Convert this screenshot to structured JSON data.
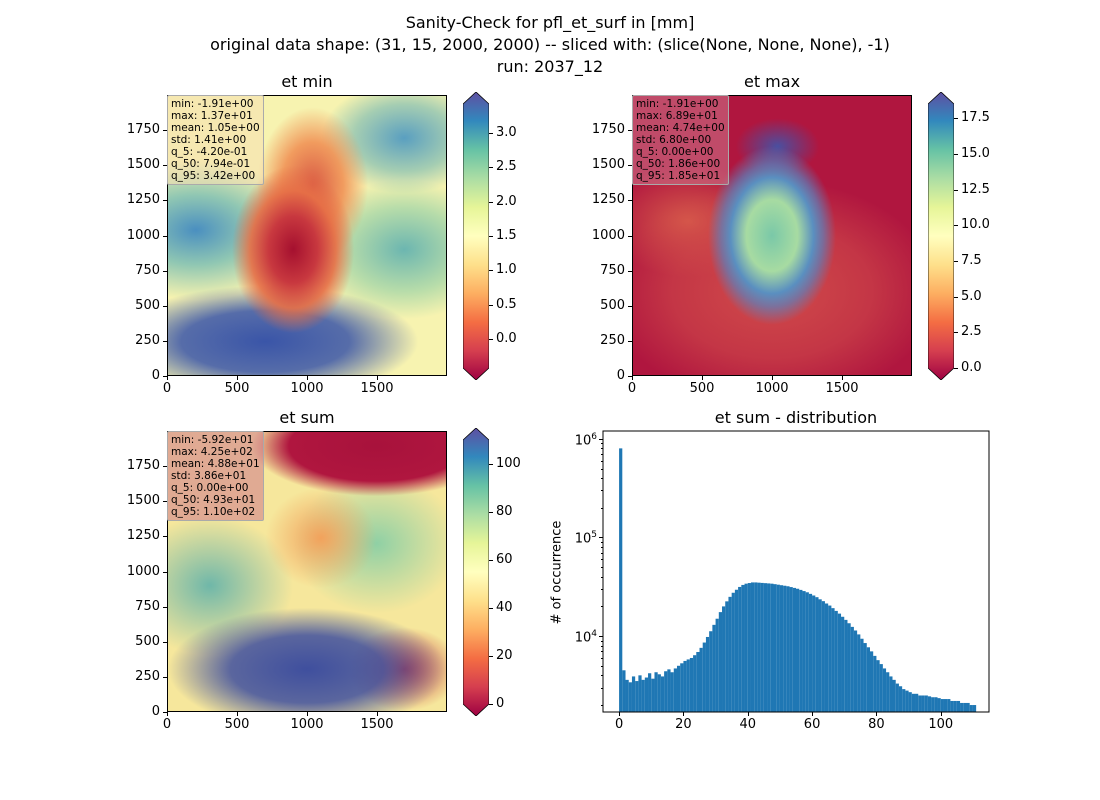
{
  "figure": {
    "title_line1": "Sanity-Check for pfl_et_surf in [mm]",
    "title_line2": "original data shape: (31, 15, 2000, 2000) -- sliced with: (slice(None, None, None), -1)",
    "title_line3": "run: 2037_12"
  },
  "chart_data": [
    {
      "type": "heatmap",
      "title": "et min",
      "xlim": [
        0,
        2000
      ],
      "ylim": [
        0,
        2000
      ],
      "xticks": [
        "0",
        "500",
        "1000",
        "1500"
      ],
      "yticks": [
        "0",
        "250",
        "500",
        "750",
        "1000",
        "1250",
        "1500",
        "1750"
      ],
      "colorbar_ticks": [
        "0.0",
        "0.5",
        "1.0",
        "1.5",
        "2.0",
        "2.5",
        "3.0"
      ],
      "colorbar_range": [
        -0.42,
        3.42
      ],
      "colormap": "Spectral",
      "stats": [
        "min: -1.91e+00",
        "max: 1.37e+01",
        "mean: 1.05e+00",
        "std: 1.41e+00",
        "q_5: -4.20e-01",
        "q_50: 7.94e-01",
        "q_95: 3.42e+00"
      ]
    },
    {
      "type": "heatmap",
      "title": "et max",
      "xlim": [
        0,
        2000
      ],
      "ylim": [
        0,
        2000
      ],
      "xticks": [
        "0",
        "500",
        "1000",
        "1500"
      ],
      "yticks": [
        "0",
        "250",
        "500",
        "750",
        "1000",
        "1250",
        "1500",
        "1750"
      ],
      "colorbar_ticks": [
        "0.0",
        "2.5",
        "5.0",
        "7.5",
        "10.0",
        "12.5",
        "15.0",
        "17.5"
      ],
      "colorbar_range": [
        0,
        18.5
      ],
      "colormap": "Spectral",
      "stats": [
        "min: -1.91e+00",
        "max: 6.89e+01",
        "mean: 4.74e+00",
        "std: 6.80e+00",
        "q_5: 0.00e+00",
        "q_50: 1.86e+00",
        "q_95: 1.85e+01"
      ]
    },
    {
      "type": "heatmap",
      "title": "et sum",
      "xlim": [
        0,
        2000
      ],
      "ylim": [
        0,
        2000
      ],
      "xticks": [
        "0",
        "500",
        "1000",
        "1500"
      ],
      "yticks": [
        "0",
        "250",
        "500",
        "750",
        "1000",
        "1250",
        "1500",
        "1750"
      ],
      "colorbar_ticks": [
        "0",
        "20",
        "40",
        "60",
        "80",
        "100"
      ],
      "colorbar_range": [
        0,
        110
      ],
      "colormap": "Spectral",
      "stats": [
        "min: -5.92e+01",
        "max: 4.25e+02",
        "mean: 4.88e+01",
        "std: 3.86e+01",
        "q_5: 0.00e+00",
        "q_50: 4.93e+01",
        "q_95: 1.10e+02"
      ]
    },
    {
      "type": "bar",
      "title": "et sum - distribution",
      "ylabel": "# of occurrence",
      "yscale": "log",
      "xlim": [
        -5,
        115
      ],
      "ylim": [
        1700,
        1200000
      ],
      "xticks": [
        "0",
        "20",
        "40",
        "60",
        "80",
        "100"
      ],
      "yticks": [
        "10^4",
        "10^5",
        "10^6"
      ],
      "bar_color": "#1f77b4",
      "x": [
        0,
        1,
        2,
        3,
        4,
        5,
        6,
        7,
        8,
        9,
        10,
        11,
        12,
        13,
        14,
        15,
        16,
        17,
        18,
        19,
        20,
        21,
        22,
        23,
        24,
        25,
        26,
        27,
        28,
        29,
        30,
        31,
        32,
        33,
        34,
        35,
        36,
        37,
        38,
        39,
        40,
        41,
        42,
        43,
        44,
        45,
        46,
        47,
        48,
        49,
        50,
        51,
        52,
        53,
        54,
        55,
        56,
        57,
        58,
        59,
        60,
        61,
        62,
        63,
        64,
        65,
        66,
        67,
        68,
        69,
        70,
        71,
        72,
        73,
        74,
        75,
        76,
        77,
        78,
        79,
        80,
        81,
        82,
        83,
        84,
        85,
        86,
        87,
        88,
        89,
        90,
        91,
        92,
        93,
        94,
        95,
        96,
        97,
        98,
        99,
        100,
        101,
        102,
        103,
        104,
        105,
        106,
        107,
        108,
        109,
        110
      ],
      "values": [
        800000,
        4500,
        3600,
        3400,
        3900,
        3500,
        4000,
        3600,
        3800,
        4200,
        3700,
        4300,
        4100,
        3900,
        4400,
        4600,
        4300,
        4700,
        5000,
        5300,
        5600,
        5800,
        6000,
        6400,
        6900,
        7600,
        8600,
        9800,
        11200,
        13000,
        15000,
        17500,
        20000,
        22500,
        25000,
        27500,
        29500,
        31500,
        33000,
        34000,
        34500,
        35000,
        35000,
        34800,
        34600,
        34400,
        34200,
        34000,
        33600,
        33200,
        32800,
        32400,
        32000,
        31400,
        30800,
        30200,
        29400,
        28600,
        27800,
        26800,
        25800,
        24800,
        23600,
        22600,
        21400,
        20400,
        19200,
        18000,
        16900,
        15700,
        14600,
        13500,
        12400,
        11400,
        10400,
        9400,
        8500,
        7700,
        7000,
        6300,
        5700,
        5200,
        4700,
        4300,
        3900,
        3600,
        3300,
        3100,
        2900,
        2800,
        2700,
        2600,
        2600,
        2500,
        2500,
        2500,
        2450,
        2400,
        2400,
        2350,
        2300,
        2300,
        2300,
        2200,
        2200,
        2200,
        2100,
        2100,
        2100,
        2000,
        2000
      ]
    }
  ]
}
